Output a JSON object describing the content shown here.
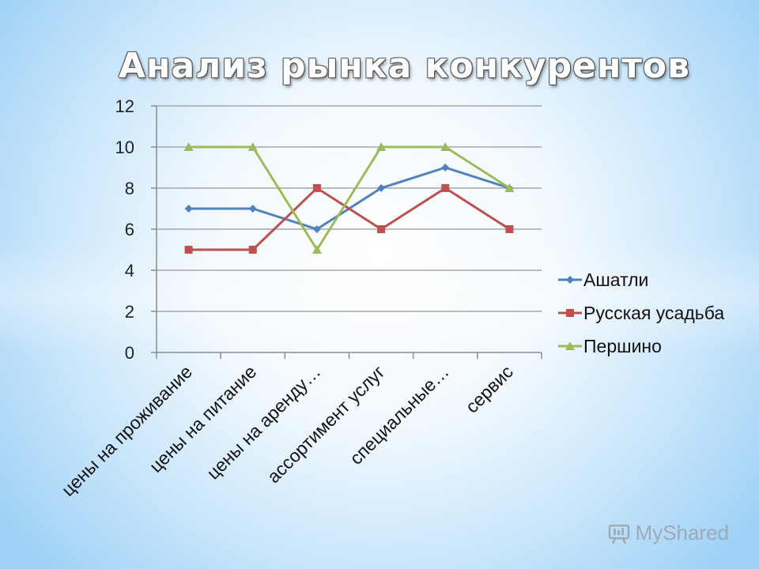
{
  "slide": {
    "title": "Анализ рынка конкурентов",
    "watermark": "MyShared"
  },
  "colors": {
    "grid": "#a6a6a6",
    "axis": "#8c8c8c"
  },
  "chart_data": {
    "type": "line",
    "categories": [
      "цены на проживание",
      "цены на питание",
      "цены на аренду…",
      "ассортимент услуг",
      "специальные…",
      "сервис"
    ],
    "series": [
      {
        "name": "Ашатли",
        "values": [
          7,
          7,
          6,
          8,
          9,
          8
        ],
        "color": "#4f81bd",
        "marker": "diamond"
      },
      {
        "name": "Русская усадьба",
        "values": [
          5,
          5,
          8,
          6,
          8,
          6
        ],
        "color": "#c0504d",
        "marker": "square"
      },
      {
        "name": "Першино",
        "values": [
          10,
          10,
          5,
          10,
          10,
          8
        ],
        "color": "#9bbb59",
        "marker": "triangle"
      }
    ],
    "ylim": [
      0,
      12
    ],
    "yticks": [
      0,
      2,
      4,
      6,
      8,
      10,
      12
    ],
    "grid": true,
    "legend": "right",
    "title": "",
    "xlabel": "",
    "ylabel": ""
  }
}
